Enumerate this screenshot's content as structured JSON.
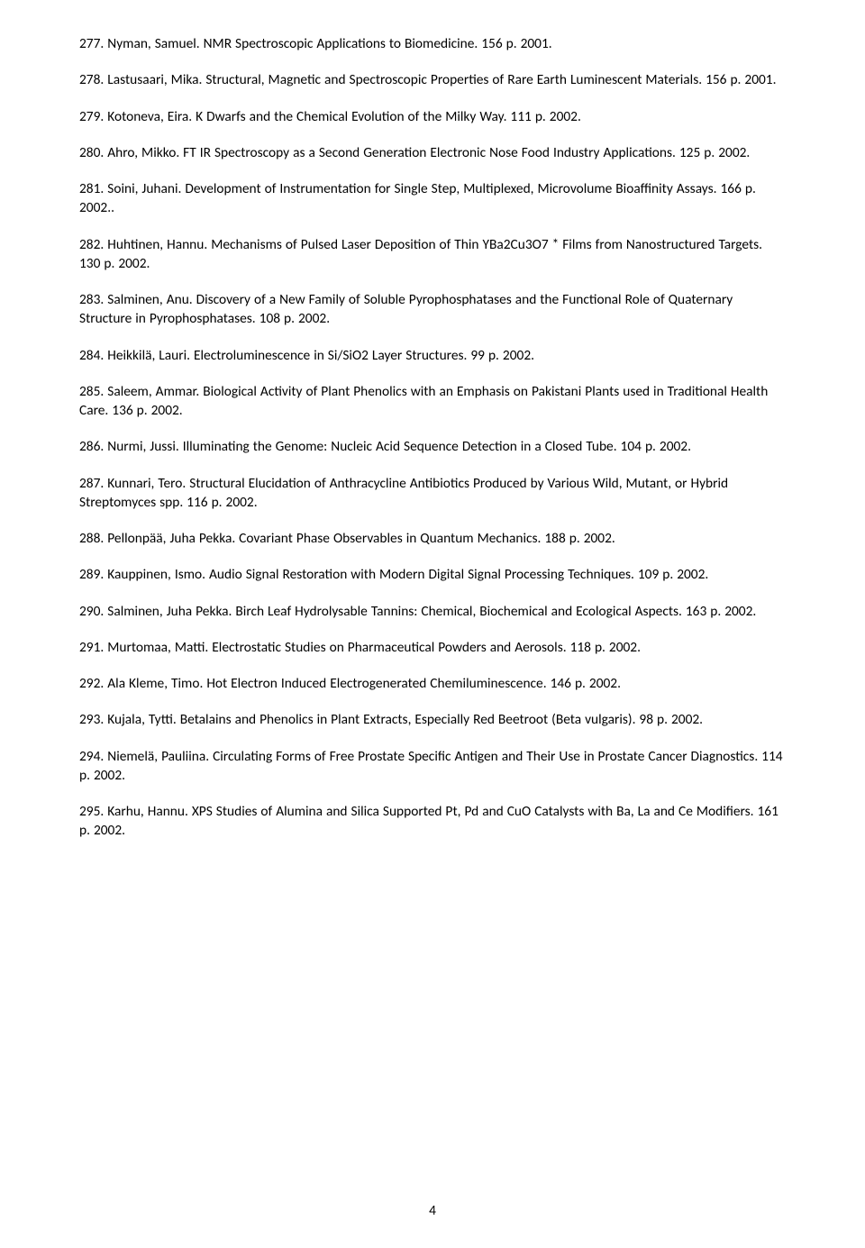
{
  "page_number": "4",
  "entries": [
    "277. Nyman, Samuel. NMR Spectroscopic Applications to Biomedicine. 156 p. 2001.",
    "278. Lastusaari, Mika. Structural, Magnetic and Spectroscopic Properties of Rare Earth Luminescent Materials. 156 p. 2001.",
    "279. Kotoneva, Eira. K Dwarfs and the Chemical Evolution of the Milky Way. 111 p. 2002.",
    "280. Ahro, Mikko. FT IR Spectroscopy as a Second Generation Electronic Nose   Food Industry Applications. 125 p. 2002.",
    "281. Soini, Juhani. Development of Instrumentation for Single Step, Multiplexed, Microvolume Bioaffinity Assays. 166 p. 2002..",
    "282. Huhtinen, Hannu. Mechanisms of Pulsed Laser Deposition of Thin YBa2Cu3O7 * Films from Nanostructured Targets. 130 p. 2002.",
    "283. Salminen, Anu. Discovery of a New Family of Soluble Pyrophosphatases and the Functional Role of Quaternary Structure in Pyrophosphatases. 108 p. 2002.",
    "284. Heikkilä, Lauri. Electroluminescence in Si/SiO2 Layer Structures. 99 p. 2002.",
    "285. Saleem, Ammar. Biological Activity of Plant Phenolics with an Emphasis on Pakistani Plants used in Traditional Health Care. 136 p. 2002.",
    "286. Nurmi, Jussi. Illuminating the Genome: Nucleic Acid Sequence Detection in a Closed Tube. 104 p. 2002.",
    "287. Kunnari, Tero. Structural Elucidation of Anthracycline Antibiotics Produced by Various Wild, Mutant, or Hybrid Streptomyces spp. 116 p. 2002.",
    "288. Pellonpää, Juha Pekka. Covariant Phase Observables in Quantum Mechanics. 188 p. 2002.",
    "289. Kauppinen, Ismo. Audio Signal Restoration with Modern Digital Signal Processing Techniques. 109 p. 2002.",
    "290. Salminen, Juha Pekka. Birch Leaf Hydrolysable Tannins: Chemical, Biochemical and Ecological Aspects. 163 p. 2002.",
    "291. Murtomaa, Matti. Electrostatic Studies on Pharmaceutical Powders and Aerosols. 118 p. 2002.",
    "292. Ala Kleme, Timo. Hot Electron Induced Electrogenerated Chemiluminescence. 146 p. 2002.",
    "293. Kujala, Tytti. Betalains and Phenolics in Plant Extracts, Especially Red Beetroot (Beta vulgaris). 98 p. 2002.",
    "294. Niemelä, Pauliina. Circulating Forms of Free Prostate Specific Antigen and Their Use in Prostate Cancer Diagnostics. 114 p. 2002.",
    "295. Karhu, Hannu. XPS Studies of Alumina and Silica Supported Pt, Pd and CuO Catalysts with Ba, La and Ce Modifiers. 161 p. 2002."
  ]
}
